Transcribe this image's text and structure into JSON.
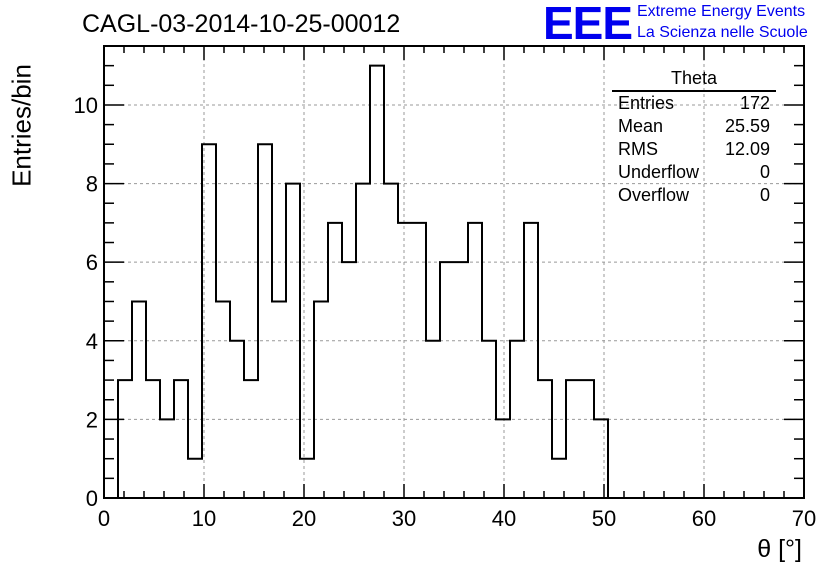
{
  "header": {
    "title": "CAGL-03-2014-10-25-00012",
    "logo": "EEE",
    "logo_line1": "Extreme Energy Events",
    "logo_line2": "La Scienza nelle Scuole"
  },
  "stats": {
    "title": "Theta",
    "rows": [
      {
        "label": "Entries",
        "value": "172"
      },
      {
        "label": "Mean",
        "value": "25.59"
      },
      {
        "label": "RMS",
        "value": "12.09"
      },
      {
        "label": "Underflow",
        "value": "0"
      },
      {
        "label": "Overflow",
        "value": "0"
      }
    ]
  },
  "colors": {
    "blue": "#0000ee",
    "grid": "#999999",
    "line": "#000000"
  },
  "chart_data": {
    "type": "bar",
    "title": "CAGL-03-2014-10-25-00012",
    "xlabel": "θ [°]",
    "ylabel": "Entries/bin",
    "xlim": [
      0,
      70
    ],
    "ylim": [
      0,
      11.5
    ],
    "grid": true,
    "bin_width": 1.4,
    "x_ticks": [
      0,
      10,
      20,
      30,
      40,
      50,
      60,
      70
    ],
    "y_ticks": [
      0,
      2,
      4,
      6,
      8,
      10
    ],
    "bins": [
      {
        "x0": 1.4,
        "x1": 2.8,
        "value": 3
      },
      {
        "x0": 2.8,
        "x1": 4.2,
        "value": 5
      },
      {
        "x0": 4.2,
        "x1": 5.6,
        "value": 3
      },
      {
        "x0": 5.6,
        "x1": 7.0,
        "value": 2
      },
      {
        "x0": 7.0,
        "x1": 8.4,
        "value": 3
      },
      {
        "x0": 8.4,
        "x1": 9.8,
        "value": 1
      },
      {
        "x0": 9.8,
        "x1": 11.2,
        "value": 9
      },
      {
        "x0": 11.2,
        "x1": 12.6,
        "value": 5
      },
      {
        "x0": 12.6,
        "x1": 14.0,
        "value": 4
      },
      {
        "x0": 14.0,
        "x1": 15.4,
        "value": 3
      },
      {
        "x0": 15.4,
        "x1": 16.8,
        "value": 9
      },
      {
        "x0": 16.8,
        "x1": 18.2,
        "value": 5
      },
      {
        "x0": 18.2,
        "x1": 19.6,
        "value": 8
      },
      {
        "x0": 19.6,
        "x1": 21.0,
        "value": 1
      },
      {
        "x0": 21.0,
        "x1": 22.4,
        "value": 5
      },
      {
        "x0": 22.4,
        "x1": 23.8,
        "value": 7
      },
      {
        "x0": 23.8,
        "x1": 25.2,
        "value": 6
      },
      {
        "x0": 25.2,
        "x1": 26.6,
        "value": 8
      },
      {
        "x0": 26.6,
        "x1": 28.0,
        "value": 11
      },
      {
        "x0": 28.0,
        "x1": 29.4,
        "value": 8
      },
      {
        "x0": 29.4,
        "x1": 30.8,
        "value": 7
      },
      {
        "x0": 30.8,
        "x1": 32.2,
        "value": 7
      },
      {
        "x0": 32.2,
        "x1": 33.6,
        "value": 4
      },
      {
        "x0": 33.6,
        "x1": 35.0,
        "value": 6
      },
      {
        "x0": 35.0,
        "x1": 36.4,
        "value": 6
      },
      {
        "x0": 36.4,
        "x1": 37.8,
        "value": 7
      },
      {
        "x0": 37.8,
        "x1": 39.2,
        "value": 4
      },
      {
        "x0": 39.2,
        "x1": 40.6,
        "value": 2
      },
      {
        "x0": 40.6,
        "x1": 42.0,
        "value": 4
      },
      {
        "x0": 42.0,
        "x1": 43.4,
        "value": 7
      },
      {
        "x0": 43.4,
        "x1": 44.8,
        "value": 3
      },
      {
        "x0": 44.8,
        "x1": 46.2,
        "value": 1
      },
      {
        "x0": 46.2,
        "x1": 47.6,
        "value": 3
      },
      {
        "x0": 47.6,
        "x1": 49.0,
        "value": 3
      },
      {
        "x0": 49.0,
        "x1": 50.4,
        "value": 2
      }
    ]
  }
}
